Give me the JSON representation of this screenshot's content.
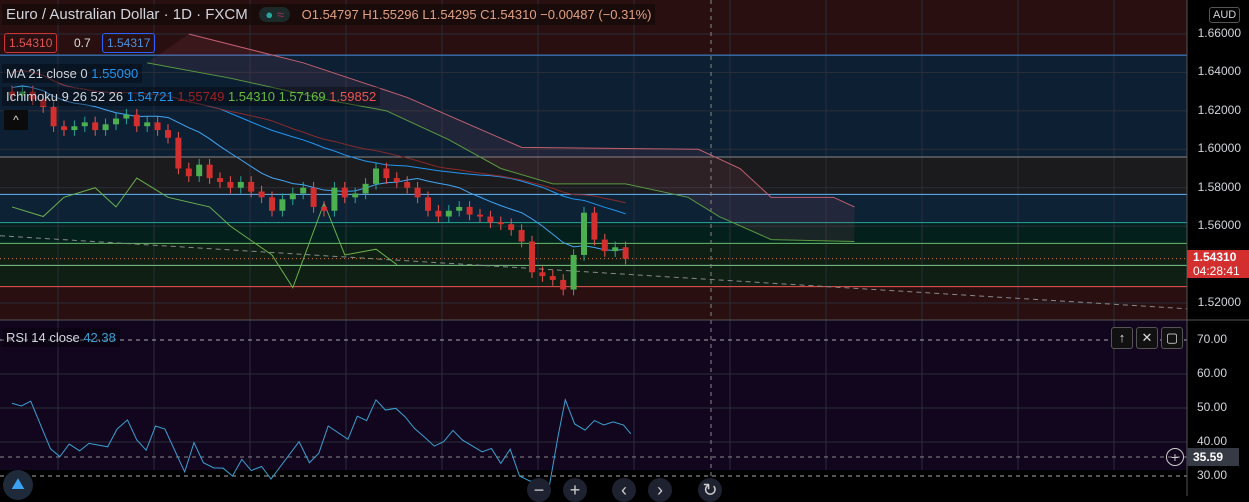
{
  "header": {
    "symbol": "Euro / Australian Dollar · 1D · FXCM",
    "ohlc": "O1.54797 H1.55296 L1.54295 C1.54310 −0.00487 (−0.31%)",
    "bid": "1.54310",
    "spread": "0.7",
    "ask": "1.54317"
  },
  "indicators": {
    "ma_label": "MA 21 close 0",
    "ma_value": "1.55090",
    "ichi_label": "Ichimoku 9 26 52 26",
    "ichi_values": [
      "1.54721",
      "1.55749",
      "1.54310",
      "1.57169",
      "1.59852"
    ],
    "rsi_label": "RSI 14 close",
    "rsi_value": "42.38"
  },
  "axis": {
    "currency": "AUD",
    "price_ticks": [
      "1.66000",
      "1.64000",
      "1.62000",
      "1.60000",
      "1.58000",
      "1.56000",
      "1.52000"
    ],
    "last_price": "1.54310",
    "countdown": "04:28:41",
    "rsi_ticks": [
      "70.00",
      "60.00",
      "50.00",
      "40.00",
      "30.00"
    ],
    "rsi_marker": "35.59"
  },
  "colors": {
    "up": "#26a69a",
    "down": "#ef5350",
    "ma": "#2196f3",
    "rsi": "#3aa0d0"
  },
  "chart_data": {
    "type": "candlestick",
    "close": [
      1.628,
      1.63,
      1.626,
      1.622,
      1.612,
      1.61,
      1.612,
      1.614,
      1.61,
      1.613,
      1.616,
      1.618,
      1.612,
      1.614,
      1.61,
      1.606,
      1.59,
      1.586,
      1.592,
      1.585,
      1.583,
      1.58,
      1.583,
      1.578,
      1.575,
      1.568,
      1.574,
      1.577,
      1.58,
      1.57,
      1.568,
      1.58,
      1.575,
      1.577,
      1.582,
      1.59,
      1.585,
      1.583,
      1.58,
      1.575,
      1.568,
      1.565,
      1.568,
      1.57,
      1.566,
      1.565,
      1.562,
      1.561,
      1.558,
      1.552,
      1.536,
      1.534,
      1.532,
      1.527,
      1.545,
      1.567,
      1.553,
      1.547,
      1.549,
      1.543
    ],
    "levels": [
      1.649,
      1.596,
      1.5765,
      1.5618,
      1.551,
      1.5395,
      1.5285
    ],
    "cloud_a": [
      [
        13,
        1.645
      ],
      [
        21,
        1.637
      ],
      [
        31,
        1.625
      ],
      [
        36,
        1.62
      ],
      [
        42,
        1.605
      ],
      [
        47,
        1.59
      ],
      [
        52,
        1.582
      ],
      [
        59,
        1.582
      ],
      [
        65,
        1.575
      ],
      [
        68,
        1.565
      ],
      [
        73,
        1.553
      ],
      [
        81,
        1.552
      ]
    ],
    "cloud_b": [
      [
        17,
        1.66
      ],
      [
        28,
        1.645
      ],
      [
        38,
        1.627
      ],
      [
        49,
        1.601
      ],
      [
        66,
        1.6
      ],
      [
        70,
        1.59
      ],
      [
        73,
        1.575
      ],
      [
        79,
        1.575
      ],
      [
        81,
        1.57
      ]
    ],
    "lagging": [
      [
        0,
        1.57
      ],
      [
        3,
        1.565
      ],
      [
        5,
        1.575
      ],
      [
        8,
        1.58
      ],
      [
        10,
        1.57
      ],
      [
        12,
        1.585
      ],
      [
        15,
        1.575
      ],
      [
        19,
        1.57
      ],
      [
        21,
        1.56
      ],
      [
        25,
        1.545
      ],
      [
        27,
        1.528
      ],
      [
        30,
        1.572
      ],
      [
        32,
        1.545
      ],
      [
        35,
        1.548
      ],
      [
        37,
        1.54
      ]
    ],
    "rsi": [
      [
        0,
        51.4
      ],
      [
        0.9,
        50.6
      ],
      [
        1.8,
        52
      ],
      [
        3.7,
        38
      ],
      [
        4.6,
        35.7
      ],
      [
        5.5,
        39.4
      ],
      [
        6.5,
        37.4
      ],
      [
        7.4,
        39.6
      ],
      [
        9.2,
        38.6
      ],
      [
        10.1,
        43.8
      ],
      [
        11.1,
        46.5
      ],
      [
        12,
        40.6
      ],
      [
        12.9,
        37.6
      ],
      [
        13.8,
        44.7
      ],
      [
        14.7,
        43.8
      ],
      [
        16.6,
        31.2
      ],
      [
        17.5,
        39.8
      ],
      [
        18.4,
        33.9
      ],
      [
        19.4,
        32.4
      ],
      [
        20.3,
        32.3
      ],
      [
        21.2,
        30
      ],
      [
        22.1,
        34.9
      ],
      [
        23,
        31.6
      ],
      [
        24,
        32.8
      ],
      [
        24.9,
        29.1
      ],
      [
        27.6,
        40.1
      ],
      [
        28.6,
        33.9
      ],
      [
        29.5,
        36.7
      ],
      [
        30.4,
        44.7
      ],
      [
        32.3,
        40.8
      ],
      [
        33.2,
        47.6
      ],
      [
        34.1,
        46.3
      ],
      [
        35,
        52.4
      ],
      [
        35.9,
        49.4
      ],
      [
        36.9,
        49.9
      ],
      [
        37.8,
        47.4
      ],
      [
        38.7,
        44
      ],
      [
        39.6,
        41.6
      ],
      [
        40.6,
        38.8
      ],
      [
        41.5,
        40.1
      ],
      [
        42.4,
        43.4
      ],
      [
        43.3,
        40.6
      ],
      [
        45.2,
        37.1
      ],
      [
        46.1,
        38.1
      ],
      [
        47,
        33.7
      ],
      [
        47.9,
        37.9
      ],
      [
        48.8,
        30
      ],
      [
        49.8,
        28.5
      ],
      [
        50.7,
        28.8
      ],
      [
        51.6,
        25.9
      ],
      [
        52.5,
        41.6
      ],
      [
        53.2,
        52.4
      ],
      [
        54.1,
        45.3
      ],
      [
        55.1,
        43.5
      ],
      [
        56,
        46.3
      ],
      [
        56.9,
        45
      ],
      [
        57.8,
        45.9
      ],
      [
        58.8,
        45
      ],
      [
        59.5,
        42.4
      ]
    ]
  }
}
